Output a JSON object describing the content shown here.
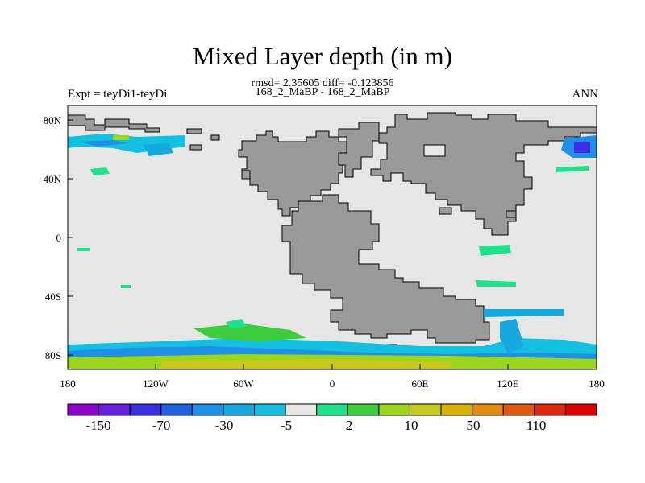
{
  "title": "Mixed Layer depth (in m)",
  "stats_line": "rmsd= 2.35605 diff= -0.123856",
  "case_line": "168_2_MaBP - 168_2_MaBP",
  "expt_label": "Expt = teyDi1-teyDi",
  "season_label": "ANN",
  "lon_ticks": [
    "180",
    "120W",
    "60W",
    "0",
    "60E",
    "120E",
    "180"
  ],
  "lat_ticks": [
    "80N",
    "40N",
    "0",
    "40S",
    "80S"
  ],
  "colorbar": {
    "colors": [
      "#8b00cc",
      "#6a1fe0",
      "#3a2fe0",
      "#1f5fe0",
      "#1f8fe8",
      "#17a8e0",
      "#14c0e0",
      "#e6e6e6",
      "#1ee28a",
      "#3ccc3c",
      "#9ad61a",
      "#c8c81a",
      "#d8b000",
      "#e08a10",
      "#e05a10",
      "#e02810",
      "#e00000"
    ],
    "labels": [
      "-150",
      "-70",
      "-30",
      "-5",
      "2",
      "10",
      "50",
      "110"
    ]
  }
}
